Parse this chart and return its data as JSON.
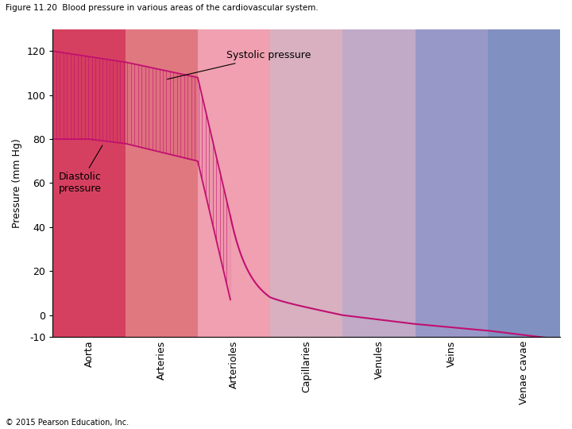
{
  "title": "Figure 11.20  Blood pressure in various areas of the cardiovascular system.",
  "ylabel": "Pressure (mm Hg)",
  "copyright": "© 2015 Pearson Education, Inc.",
  "ylim": [
    -10,
    130
  ],
  "yticks": [
    -10,
    0,
    20,
    40,
    60,
    80,
    100,
    120
  ],
  "categories": [
    "Aorta",
    "Arteries",
    "Arterioles",
    "Capillaries",
    "Venules",
    "Veins",
    "Venae cavae"
  ],
  "bg_colors": [
    "#d64060",
    "#e07880",
    "#f0a0b0",
    "#d8b0c0",
    "#c0aac8",
    "#9898c8",
    "#8090c0"
  ],
  "line_color": "#c01070",
  "title_fontsize": 7.5,
  "axis_fontsize": 9,
  "tick_fontsize": 9,
  "label_fontsize": 9,
  "systolic_label": "Systolic pressure",
  "diastolic_label": "Diastolic\npressure"
}
